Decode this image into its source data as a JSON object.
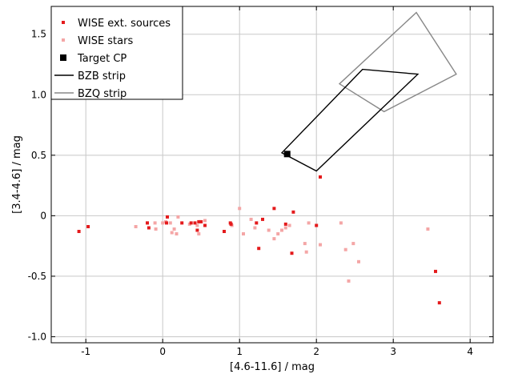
{
  "chart_data": {
    "type": "scatter",
    "xlabel": "[4.6-11.6] / mag",
    "ylabel": "[3.4-4.6] / mag",
    "xlim": [
      -1.45,
      4.3
    ],
    "ylim": [
      -1.05,
      1.73
    ],
    "xticks": [
      -1,
      0,
      1,
      2,
      3,
      4
    ],
    "yticks": [
      -1.0,
      -0.5,
      0,
      0.5,
      1.0,
      1.5
    ],
    "xtick_labels": [
      "-1",
      "0",
      "1",
      "2",
      "3",
      "4"
    ],
    "ytick_labels": [
      "-1.0",
      "-0.5",
      "0",
      "0.5",
      "1.0",
      "1.5"
    ],
    "grid": true,
    "legend_position": "top-left",
    "legend": [
      {
        "label": "WISE ext. sources",
        "marker": "dot",
        "color": "#e41a1c"
      },
      {
        "label": "WISE stars",
        "marker": "dot",
        "color": "#f4a6a6"
      },
      {
        "label": "Target CP",
        "marker": "square",
        "color": "#000000"
      },
      {
        "label": "BZB strip",
        "marker": "line",
        "color": "#000000"
      },
      {
        "label": "BZQ strip",
        "marker": "line",
        "color": "#888888"
      }
    ],
    "series": [
      {
        "name": "WISE ext. sources",
        "color": "#e41a1c",
        "points": [
          [
            -1.09,
            -0.13
          ],
          [
            -0.97,
            -0.09
          ],
          [
            -0.2,
            -0.06
          ],
          [
            -0.18,
            -0.1
          ],
          [
            0.05,
            -0.06
          ],
          [
            0.06,
            -0.01
          ],
          [
            0.25,
            -0.06
          ],
          [
            0.37,
            -0.06
          ],
          [
            0.42,
            -0.06
          ],
          [
            0.45,
            -0.12
          ],
          [
            0.47,
            -0.05
          ],
          [
            0.5,
            -0.05
          ],
          [
            0.55,
            -0.08
          ],
          [
            0.8,
            -0.13
          ],
          [
            0.88,
            -0.06
          ],
          [
            0.89,
            -0.07
          ],
          [
            1.22,
            -0.06
          ],
          [
            1.25,
            -0.27
          ],
          [
            1.3,
            -0.03
          ],
          [
            1.45,
            0.06
          ],
          [
            1.6,
            -0.07
          ],
          [
            1.68,
            -0.31
          ],
          [
            1.7,
            0.03
          ],
          [
            2.0,
            -0.08
          ],
          [
            2.05,
            0.32
          ],
          [
            3.55,
            -0.46
          ],
          [
            3.6,
            -0.72
          ]
        ]
      },
      {
        "name": "WISE stars",
        "color": "#f4a6a6",
        "points": [
          [
            -0.35,
            -0.09
          ],
          [
            -0.2,
            -0.06
          ],
          [
            -0.1,
            -0.06
          ],
          [
            -0.09,
            -0.11
          ],
          [
            0.0,
            -0.06
          ],
          [
            0.04,
            -0.05
          ],
          [
            0.1,
            -0.06
          ],
          [
            0.12,
            -0.14
          ],
          [
            0.15,
            -0.11
          ],
          [
            0.18,
            -0.15
          ],
          [
            0.2,
            -0.01
          ],
          [
            0.35,
            -0.07
          ],
          [
            0.45,
            -0.08
          ],
          [
            0.47,
            -0.15
          ],
          [
            0.55,
            -0.04
          ],
          [
            0.9,
            -0.08
          ],
          [
            1.0,
            0.06
          ],
          [
            1.05,
            -0.15
          ],
          [
            1.15,
            -0.03
          ],
          [
            1.2,
            -0.1
          ],
          [
            1.38,
            -0.12
          ],
          [
            1.45,
            -0.19
          ],
          [
            1.5,
            -0.15
          ],
          [
            1.55,
            -0.12
          ],
          [
            1.6,
            -0.1
          ],
          [
            1.65,
            -0.08
          ],
          [
            1.85,
            -0.23
          ],
          [
            1.87,
            -0.3
          ],
          [
            1.9,
            -0.06
          ],
          [
            2.05,
            -0.24
          ],
          [
            2.32,
            -0.06
          ],
          [
            2.38,
            -0.28
          ],
          [
            2.42,
            -0.54
          ],
          [
            2.48,
            -0.23
          ],
          [
            2.55,
            -0.38
          ],
          [
            3.45,
            -0.11
          ]
        ]
      }
    ],
    "target_cp": {
      "name": "Target CP",
      "x": 1.62,
      "y": 0.51
    },
    "bzb_strip": {
      "name": "BZB strip",
      "color": "#000000",
      "polygon": [
        [
          1.55,
          0.52
        ],
        [
          2.6,
          1.21
        ],
        [
          3.32,
          1.17
        ],
        [
          2.0,
          0.37
        ]
      ]
    },
    "bzq_strip": {
      "name": "BZQ strip",
      "color": "#888888",
      "polygon": [
        [
          2.3,
          1.09
        ],
        [
          3.3,
          1.68
        ],
        [
          3.82,
          1.17
        ],
        [
          2.88,
          0.86
        ]
      ]
    }
  }
}
